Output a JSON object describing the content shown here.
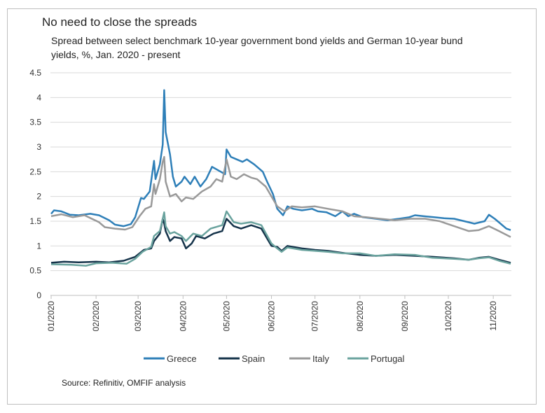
{
  "title": "No need to close the spreads",
  "subtitle": "Spread between select benchmark 10-year government bond yields and German 10-year bund yields, %, Jan. 2020 - present",
  "source": "Source: Refinitiv, OMFIF analysis",
  "chart_data": {
    "type": "line",
    "y_ticks": [
      "0",
      "0.5",
      "1",
      "1.5",
      "2",
      "2.5",
      "3",
      "3.5",
      "4",
      "4.5"
    ],
    "ylim": [
      0,
      4.5
    ],
    "x_ticks": [
      {
        "label": "01/2020",
        "date": "2020-01-01"
      },
      {
        "label": "02/2020",
        "date": "2020-02-01"
      },
      {
        "label": "03/2020",
        "date": "2020-03-01"
      },
      {
        "label": "04/2020",
        "date": "2020-04-01"
      },
      {
        "label": "05/2020",
        "date": "2020-05-01"
      },
      {
        "label": "06/2020",
        "date": "2020-06-01"
      },
      {
        "label": "07/2020",
        "date": "2020-07-01"
      },
      {
        "label": "08/2020",
        "date": "2020-08-01"
      },
      {
        "label": "09/2020",
        "date": "2020-09-01"
      },
      {
        "label": "10/2020",
        "date": "2020-10-01"
      },
      {
        "label": "11/2020",
        "date": "2020-11-01"
      }
    ],
    "x_range": [
      "2020-01-01",
      "2020-11-13"
    ],
    "grid": "horizontal",
    "legend_position": "bottom",
    "series": [
      {
        "name": "Greece",
        "color": "#2e7fb8",
        "points": [
          [
            "2020-01-01",
            1.65
          ],
          [
            "2020-01-03",
            1.72
          ],
          [
            "2020-01-08",
            1.7
          ],
          [
            "2020-01-14",
            1.63
          ],
          [
            "2020-01-20",
            1.62
          ],
          [
            "2020-01-28",
            1.65
          ],
          [
            "2020-02-03",
            1.62
          ],
          [
            "2020-02-10",
            1.52
          ],
          [
            "2020-02-14",
            1.43
          ],
          [
            "2020-02-20",
            1.4
          ],
          [
            "2020-02-25",
            1.44
          ],
          [
            "2020-02-28",
            1.58
          ],
          [
            "2020-03-03",
            1.97
          ],
          [
            "2020-03-05",
            1.95
          ],
          [
            "2020-03-09",
            2.1
          ],
          [
            "2020-03-12",
            2.72
          ],
          [
            "2020-03-13",
            2.35
          ],
          [
            "2020-03-16",
            2.65
          ],
          [
            "2020-03-18",
            3.05
          ],
          [
            "2020-03-19",
            4.15
          ],
          [
            "2020-03-20",
            3.3
          ],
          [
            "2020-03-23",
            2.85
          ],
          [
            "2020-03-25",
            2.4
          ],
          [
            "2020-03-27",
            2.2
          ],
          [
            "2020-03-31",
            2.3
          ],
          [
            "2020-04-02",
            2.4
          ],
          [
            "2020-04-06",
            2.25
          ],
          [
            "2020-04-09",
            2.4
          ],
          [
            "2020-04-13",
            2.2
          ],
          [
            "2020-04-17",
            2.35
          ],
          [
            "2020-04-21",
            2.6
          ],
          [
            "2020-04-24",
            2.55
          ],
          [
            "2020-04-27",
            2.5
          ],
          [
            "2020-04-30",
            2.45
          ],
          [
            "2020-05-01",
            2.95
          ],
          [
            "2020-05-04",
            2.8
          ],
          [
            "2020-05-08",
            2.75
          ],
          [
            "2020-05-12",
            2.7
          ],
          [
            "2020-05-15",
            2.75
          ],
          [
            "2020-05-20",
            2.65
          ],
          [
            "2020-05-26",
            2.5
          ],
          [
            "2020-05-29",
            2.3
          ],
          [
            "2020-06-02",
            2.05
          ],
          [
            "2020-06-05",
            1.75
          ],
          [
            "2020-06-09",
            1.62
          ],
          [
            "2020-06-12",
            1.8
          ],
          [
            "2020-06-16",
            1.75
          ],
          [
            "2020-06-22",
            1.72
          ],
          [
            "2020-06-29",
            1.75
          ],
          [
            "2020-07-03",
            1.7
          ],
          [
            "2020-07-09",
            1.68
          ],
          [
            "2020-07-15",
            1.6
          ],
          [
            "2020-07-20",
            1.7
          ],
          [
            "2020-07-24",
            1.6
          ],
          [
            "2020-07-28",
            1.65
          ],
          [
            "2020-08-03",
            1.58
          ],
          [
            "2020-08-12",
            1.55
          ],
          [
            "2020-08-20",
            1.52
          ],
          [
            "2020-08-28",
            1.55
          ],
          [
            "2020-09-04",
            1.58
          ],
          [
            "2020-09-08",
            1.62
          ],
          [
            "2020-09-14",
            1.6
          ],
          [
            "2020-09-21",
            1.58
          ],
          [
            "2020-09-28",
            1.56
          ],
          [
            "2020-10-05",
            1.55
          ],
          [
            "2020-10-12",
            1.5
          ],
          [
            "2020-10-19",
            1.45
          ],
          [
            "2020-10-26",
            1.5
          ],
          [
            "2020-10-29",
            1.63
          ],
          [
            "2020-11-02",
            1.55
          ],
          [
            "2020-11-06",
            1.45
          ],
          [
            "2020-11-10",
            1.35
          ],
          [
            "2020-11-13",
            1.32
          ]
        ]
      },
      {
        "name": "Spain",
        "color": "#15334a",
        "points": [
          [
            "2020-01-01",
            0.66
          ],
          [
            "2020-01-10",
            0.68
          ],
          [
            "2020-01-20",
            0.67
          ],
          [
            "2020-02-01",
            0.68
          ],
          [
            "2020-02-10",
            0.67
          ],
          [
            "2020-02-20",
            0.7
          ],
          [
            "2020-02-28",
            0.78
          ],
          [
            "2020-03-05",
            0.92
          ],
          [
            "2020-03-10",
            0.95
          ],
          [
            "2020-03-12",
            1.1
          ],
          [
            "2020-03-16",
            1.25
          ],
          [
            "2020-03-18",
            1.55
          ],
          [
            "2020-03-19",
            1.45
          ],
          [
            "2020-03-20",
            1.3
          ],
          [
            "2020-03-23",
            1.1
          ],
          [
            "2020-03-26",
            1.18
          ],
          [
            "2020-03-31",
            1.15
          ],
          [
            "2020-04-03",
            0.95
          ],
          [
            "2020-04-07",
            1.05
          ],
          [
            "2020-04-10",
            1.2
          ],
          [
            "2020-04-16",
            1.15
          ],
          [
            "2020-04-22",
            1.25
          ],
          [
            "2020-04-28",
            1.3
          ],
          [
            "2020-05-01",
            1.55
          ],
          [
            "2020-05-06",
            1.4
          ],
          [
            "2020-05-11",
            1.35
          ],
          [
            "2020-05-18",
            1.42
          ],
          [
            "2020-05-25",
            1.35
          ],
          [
            "2020-06-01",
            1.0
          ],
          [
            "2020-06-05",
            0.98
          ],
          [
            "2020-06-08",
            0.9
          ],
          [
            "2020-06-12",
            1.0
          ],
          [
            "2020-06-22",
            0.95
          ],
          [
            "2020-07-01",
            0.92
          ],
          [
            "2020-07-10",
            0.9
          ],
          [
            "2020-07-20",
            0.86
          ],
          [
            "2020-08-01",
            0.82
          ],
          [
            "2020-08-12",
            0.8
          ],
          [
            "2020-08-25",
            0.82
          ],
          [
            "2020-09-08",
            0.8
          ],
          [
            "2020-09-20",
            0.78
          ],
          [
            "2020-10-05",
            0.75
          ],
          [
            "2020-10-15",
            0.72
          ],
          [
            "2020-10-22",
            0.76
          ],
          [
            "2020-10-29",
            0.78
          ],
          [
            "2020-11-05",
            0.72
          ],
          [
            "2020-11-13",
            0.66
          ]
        ]
      },
      {
        "name": "Italy",
        "color": "#999999",
        "points": [
          [
            "2020-01-01",
            1.6
          ],
          [
            "2020-01-08",
            1.64
          ],
          [
            "2020-01-16",
            1.58
          ],
          [
            "2020-01-24",
            1.62
          ],
          [
            "2020-02-03",
            1.48
          ],
          [
            "2020-02-07",
            1.38
          ],
          [
            "2020-02-14",
            1.35
          ],
          [
            "2020-02-21",
            1.33
          ],
          [
            "2020-02-26",
            1.38
          ],
          [
            "2020-03-02",
            1.6
          ],
          [
            "2020-03-06",
            1.75
          ],
          [
            "2020-03-10",
            1.8
          ],
          [
            "2020-03-12",
            2.25
          ],
          [
            "2020-03-13",
            2.05
          ],
          [
            "2020-03-16",
            2.35
          ],
          [
            "2020-03-18",
            2.7
          ],
          [
            "2020-03-19",
            2.8
          ],
          [
            "2020-03-20",
            2.3
          ],
          [
            "2020-03-23",
            2.0
          ],
          [
            "2020-03-27",
            2.05
          ],
          [
            "2020-03-31",
            1.9
          ],
          [
            "2020-04-03",
            1.98
          ],
          [
            "2020-04-08",
            1.95
          ],
          [
            "2020-04-14",
            2.1
          ],
          [
            "2020-04-20",
            2.2
          ],
          [
            "2020-04-24",
            2.35
          ],
          [
            "2020-04-28",
            2.3
          ],
          [
            "2020-05-01",
            2.75
          ],
          [
            "2020-05-04",
            2.4
          ],
          [
            "2020-05-08",
            2.35
          ],
          [
            "2020-05-13",
            2.45
          ],
          [
            "2020-05-18",
            2.38
          ],
          [
            "2020-05-22",
            2.35
          ],
          [
            "2020-05-28",
            2.2
          ],
          [
            "2020-06-02",
            1.95
          ],
          [
            "2020-06-05",
            1.8
          ],
          [
            "2020-06-10",
            1.7
          ],
          [
            "2020-06-15",
            1.8
          ],
          [
            "2020-06-22",
            1.78
          ],
          [
            "2020-07-01",
            1.8
          ],
          [
            "2020-07-10",
            1.75
          ],
          [
            "2020-07-20",
            1.7
          ],
          [
            "2020-07-28",
            1.6
          ],
          [
            "2020-08-05",
            1.58
          ],
          [
            "2020-08-15",
            1.55
          ],
          [
            "2020-08-25",
            1.52
          ],
          [
            "2020-09-05",
            1.55
          ],
          [
            "2020-09-15",
            1.55
          ],
          [
            "2020-09-25",
            1.5
          ],
          [
            "2020-10-05",
            1.4
          ],
          [
            "2020-10-15",
            1.3
          ],
          [
            "2020-10-22",
            1.32
          ],
          [
            "2020-10-29",
            1.4
          ],
          [
            "2020-11-05",
            1.3
          ],
          [
            "2020-11-13",
            1.18
          ]
        ]
      },
      {
        "name": "Portugal",
        "color": "#6aa39e",
        "points": [
          [
            "2020-01-01",
            0.63
          ],
          [
            "2020-01-15",
            0.62
          ],
          [
            "2020-01-25",
            0.6
          ],
          [
            "2020-02-01",
            0.65
          ],
          [
            "2020-02-12",
            0.66
          ],
          [
            "2020-02-22",
            0.64
          ],
          [
            "2020-02-28",
            0.74
          ],
          [
            "2020-03-04",
            0.88
          ],
          [
            "2020-03-10",
            0.98
          ],
          [
            "2020-03-12",
            1.2
          ],
          [
            "2020-03-16",
            1.3
          ],
          [
            "2020-03-18",
            1.55
          ],
          [
            "2020-03-19",
            1.68
          ],
          [
            "2020-03-20",
            1.4
          ],
          [
            "2020-03-23",
            1.25
          ],
          [
            "2020-03-26",
            1.28
          ],
          [
            "2020-03-31",
            1.2
          ],
          [
            "2020-04-03",
            1.1
          ],
          [
            "2020-04-08",
            1.25
          ],
          [
            "2020-04-14",
            1.2
          ],
          [
            "2020-04-20",
            1.35
          ],
          [
            "2020-04-28",
            1.42
          ],
          [
            "2020-05-01",
            1.7
          ],
          [
            "2020-05-06",
            1.48
          ],
          [
            "2020-05-11",
            1.45
          ],
          [
            "2020-05-18",
            1.48
          ],
          [
            "2020-05-25",
            1.42
          ],
          [
            "2020-06-01",
            1.05
          ],
          [
            "2020-06-05",
            0.95
          ],
          [
            "2020-06-08",
            0.88
          ],
          [
            "2020-06-12",
            0.97
          ],
          [
            "2020-06-22",
            0.92
          ],
          [
            "2020-07-01",
            0.9
          ],
          [
            "2020-07-10",
            0.88
          ],
          [
            "2020-07-20",
            0.85
          ],
          [
            "2020-08-01",
            0.85
          ],
          [
            "2020-08-12",
            0.8
          ],
          [
            "2020-08-25",
            0.83
          ],
          [
            "2020-09-08",
            0.82
          ],
          [
            "2020-09-20",
            0.76
          ],
          [
            "2020-10-05",
            0.74
          ],
          [
            "2020-10-15",
            0.72
          ],
          [
            "2020-10-22",
            0.75
          ],
          [
            "2020-10-29",
            0.77
          ],
          [
            "2020-11-05",
            0.7
          ],
          [
            "2020-11-13",
            0.64
          ]
        ]
      }
    ]
  }
}
